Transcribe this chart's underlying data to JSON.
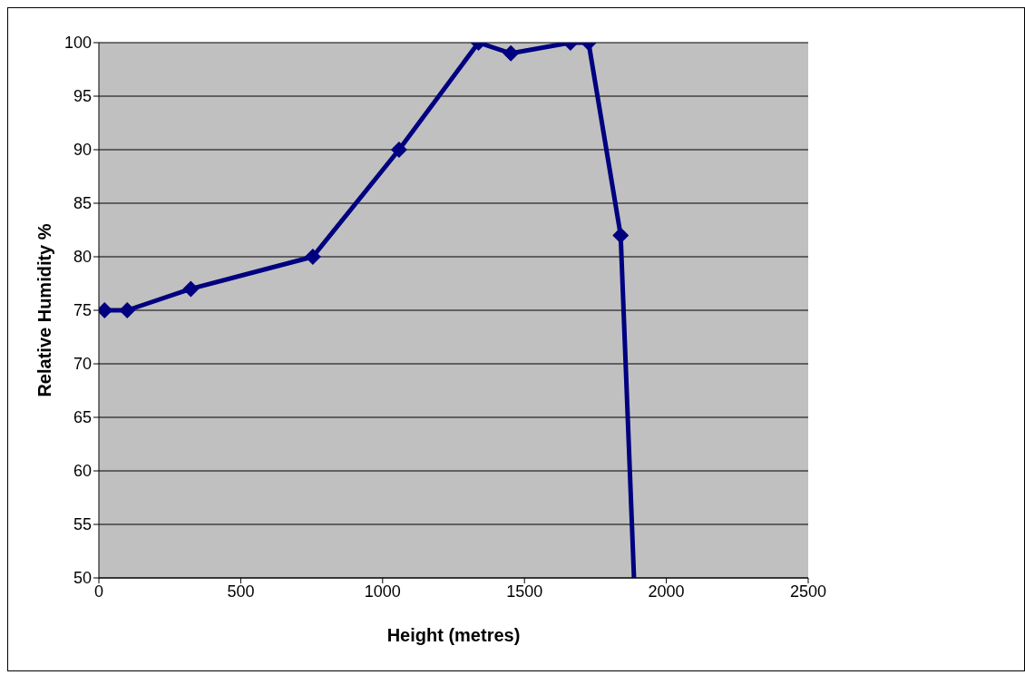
{
  "chart_data": {
    "type": "line",
    "xlabel": "Height (metres)",
    "ylabel": "Relative Humidity %",
    "x": [
      20,
      100,
      324,
      754,
      1058,
      1338,
      1452,
      1662,
      1726,
      1839,
      1886
    ],
    "series": [
      {
        "color": "#000080",
        "values": [
          75,
          75,
          77,
          80,
          90,
          100,
          99,
          100,
          100,
          82,
          50
        ]
      }
    ],
    "xlim": [
      0,
      2500
    ],
    "xticks": [
      0,
      500,
      1000,
      1500,
      2000,
      2500
    ],
    "ylim": [
      50,
      100
    ],
    "yticks": [
      50,
      55,
      60,
      65,
      70,
      75,
      80,
      85,
      90,
      95,
      100
    ],
    "grid": "y",
    "marker": "diamond",
    "line_style": "solid",
    "legend": false
  }
}
